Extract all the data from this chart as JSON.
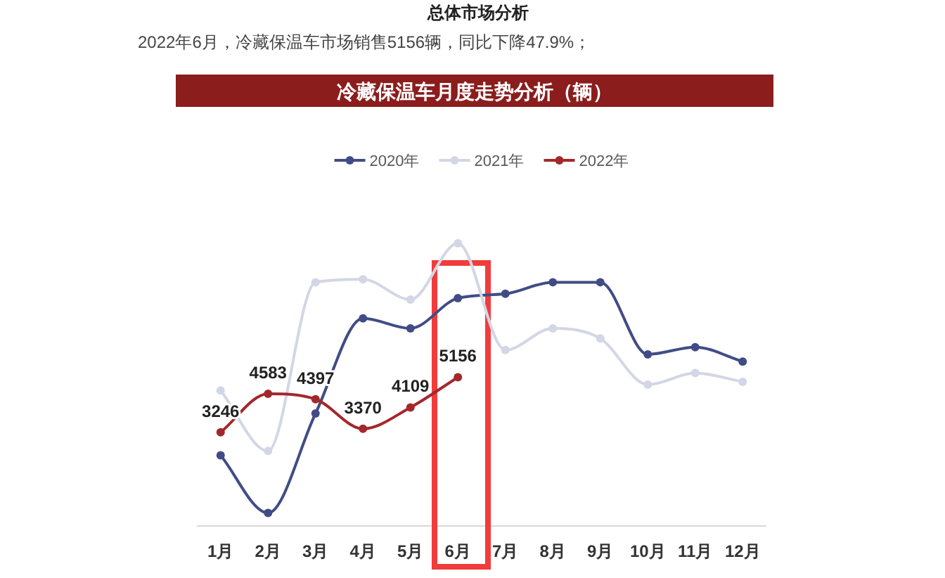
{
  "chart_data": {
    "type": "line",
    "title": "冷藏保温车月度走势分析（辆）",
    "annotations": [
      "总体市场分析",
      "2022年6月，冷藏保温车市场销售5156辆，同比下降47.9%；"
    ],
    "categories": [
      "1月",
      "2月",
      "3月",
      "4月",
      "5月",
      "6月",
      "7月",
      "8月",
      "9月",
      "10月",
      "11月",
      "12月"
    ],
    "series": [
      {
        "name": "2020年",
        "color": "#414c86",
        "values": [
          2450,
          450,
          3900,
          7200,
          6850,
          7900,
          8050,
          8450,
          8450,
          5950,
          6200,
          5700
        ]
      },
      {
        "name": "2021年",
        "color": "#d3d6e5",
        "values": [
          4700,
          2600,
          8450,
          8550,
          7850,
          9800,
          6100,
          6850,
          6500,
          4900,
          5300,
          5000
        ]
      },
      {
        "name": "2022年",
        "color": "#a3282c",
        "values": [
          3246,
          4583,
          4397,
          3370,
          4109,
          5156,
          null,
          null,
          null,
          null,
          null,
          null
        ],
        "value_labels": [
          "3246",
          "4583",
          "4397",
          "3370",
          "4109",
          "5156",
          null,
          null,
          null,
          null,
          null,
          null
        ]
      }
    ],
    "tick_labels": "x",
    "legend": "top",
    "marker": "circle",
    "line_style": "solid"
  }
}
